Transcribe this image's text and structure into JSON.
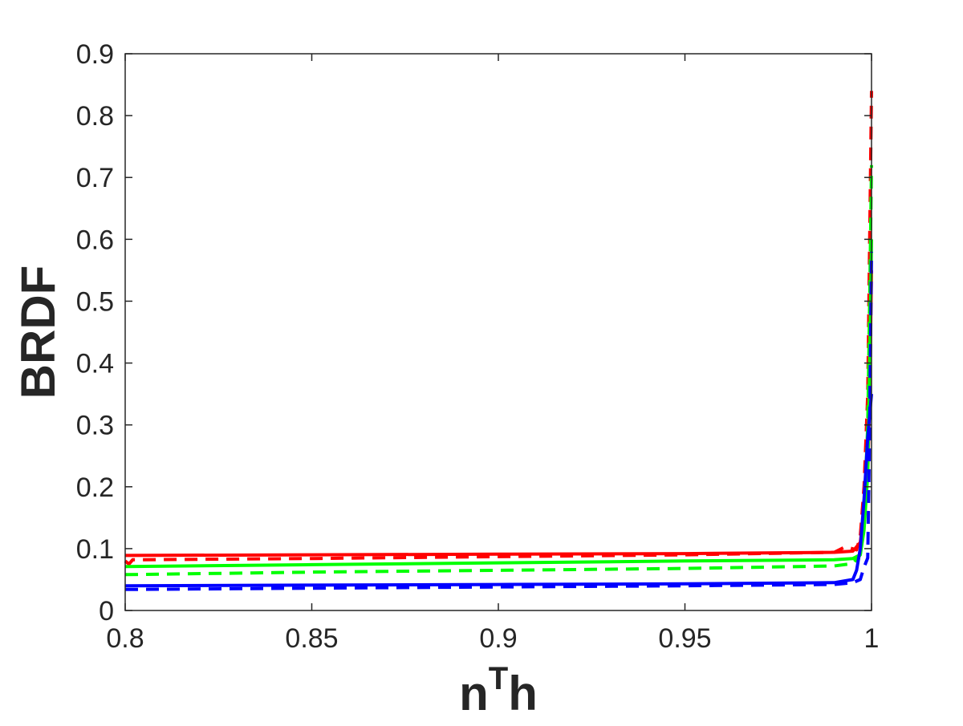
{
  "chart_data": {
    "type": "line",
    "title": "",
    "xlabel": "n",
    "xlabel_superscript": "T",
    "xlabel_suffix": "h",
    "ylabel": "BRDF",
    "xlim": [
      0.8,
      1.0
    ],
    "ylim": [
      0,
      0.9
    ],
    "grid": false,
    "legend": "none",
    "xticks": [
      0.8,
      0.85,
      0.9,
      0.95,
      1.0
    ],
    "xtick_labels": [
      "0.8",
      "0.85",
      "0.9",
      "0.95",
      "1"
    ],
    "yticks": [
      0,
      0.1,
      0.2,
      0.3,
      0.4,
      0.5,
      0.6,
      0.7,
      0.8,
      0.9
    ],
    "ytick_labels": [
      "0",
      "0.1",
      "0.2",
      "0.3",
      "0.4",
      "0.5",
      "0.6",
      "0.7",
      "0.8",
      "0.9"
    ],
    "series": [
      {
        "color": "#ff0000",
        "style": "solid",
        "x": [
          0.8,
          0.85,
          0.9,
          0.95,
          0.99,
          0.995,
          0.997,
          0.998,
          0.999,
          0.9995,
          1.0
        ],
        "y": [
          0.089,
          0.09,
          0.091,
          0.092,
          0.094,
          0.096,
          0.11,
          0.16,
          0.22,
          0.35,
          0.55
        ]
      },
      {
        "color": "#ff0000",
        "style": "dashed",
        "x": [
          0.8,
          0.801,
          0.802,
          0.85,
          0.9,
          0.95,
          0.99,
          0.993,
          0.996,
          0.997,
          0.998,
          0.999,
          0.9995,
          1.0
        ],
        "y": [
          0.08,
          0.075,
          0.082,
          0.084,
          0.087,
          0.09,
          0.094,
          0.103,
          0.098,
          0.12,
          0.2,
          0.35,
          0.6,
          0.84
        ]
      },
      {
        "color": "#00ff00",
        "style": "solid",
        "x": [
          0.8,
          0.85,
          0.9,
          0.95,
          0.99,
          0.995,
          0.997,
          0.998,
          0.999,
          0.9995,
          1.0
        ],
        "y": [
          0.071,
          0.074,
          0.077,
          0.08,
          0.082,
          0.084,
          0.09,
          0.13,
          0.22,
          0.4,
          0.6
        ]
      },
      {
        "color": "#00ff00",
        "style": "dashed",
        "x": [
          0.8,
          0.85,
          0.9,
          0.95,
          0.99,
          0.995,
          0.997,
          0.998,
          0.999,
          0.9995,
          1.0
        ],
        "y": [
          0.058,
          0.062,
          0.065,
          0.068,
          0.072,
          0.076,
          0.09,
          0.15,
          0.3,
          0.5,
          0.72
        ]
      },
      {
        "color": "#0000ff",
        "style": "solid",
        "x": [
          0.8,
          0.85,
          0.9,
          0.95,
          0.99,
          0.995,
          0.996,
          0.997,
          0.998,
          0.999,
          1.0
        ],
        "y": [
          0.04,
          0.041,
          0.042,
          0.043,
          0.045,
          0.05,
          0.065,
          0.1,
          0.18,
          0.28,
          0.35
        ]
      },
      {
        "color": "#0000ff",
        "style": "dashed",
        "x": [
          0.8,
          0.85,
          0.9,
          0.95,
          0.99,
          0.995,
          0.997,
          0.998,
          0.999,
          0.9995,
          1.0
        ],
        "y": [
          0.034,
          0.036,
          0.038,
          0.04,
          0.042,
          0.045,
          0.05,
          0.07,
          0.085,
          0.3,
          0.58
        ]
      }
    ]
  }
}
